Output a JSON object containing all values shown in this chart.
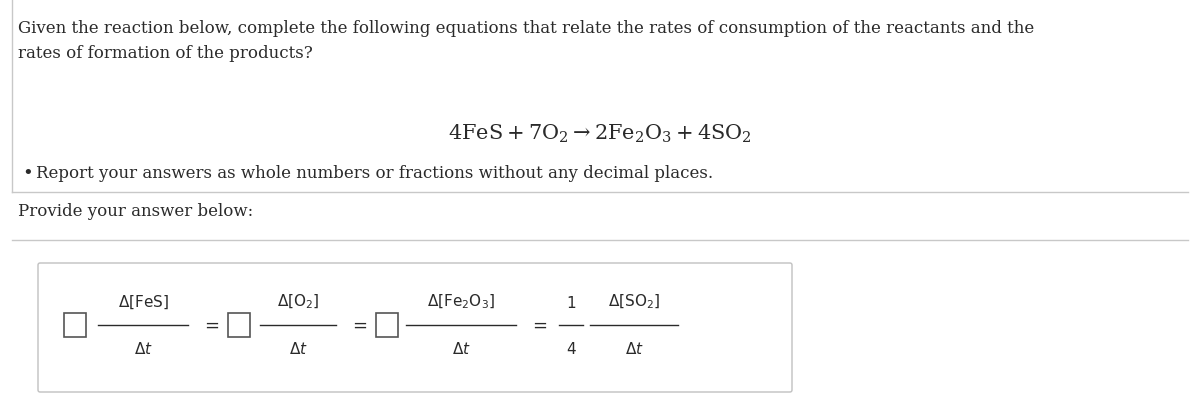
{
  "bg_color": "#ffffff",
  "top_text_line1": "Given the reaction below, complete the following equations that relate the rates of consumption of the reactants and the",
  "top_text_line2": "rates of formation of the products?",
  "bullet_text": "Report your answers as whole numbers or fractions without any decimal places.",
  "provide_text": "Provide your answer below:",
  "text_color": "#2a2a2a",
  "divider_color": "#c8c8c8",
  "box_border_color": "#c0c0c0",
  "left_bar_color": "#c8c8c8"
}
